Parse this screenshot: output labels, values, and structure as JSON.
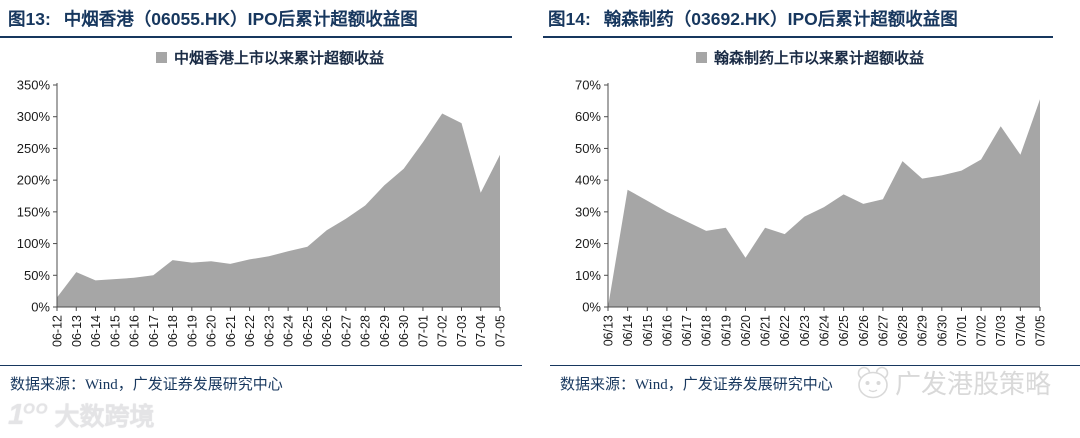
{
  "colors": {
    "title_navy": "#17375e",
    "area_gray": "#a6a6a6",
    "axis_gray": "#4d4d4d",
    "watermark_light": "#d9d9d9"
  },
  "panels": [
    {
      "figure_label": "图13:",
      "title": "中烟香港（06055.HK）IPO后累计超额收益图",
      "legend": "中烟香港上市以来累计超额收益",
      "source": "数据来源：Wind，广发证券发展研究中心"
    },
    {
      "figure_label": "图14:",
      "title": "翰森制药（03692.HK）IPO后累计超额收益图",
      "legend": "翰森制药上市以来累计超额收益",
      "source": "数据来源：Wind，广发证券发展研究中心"
    }
  ],
  "chart_data": [
    {
      "type": "area",
      "title": "中烟香港上市以来累计超额收益",
      "categories": [
        "06-12",
        "06-13",
        "06-14",
        "06-15",
        "06-16",
        "06-17",
        "06-18",
        "06-19",
        "06-20",
        "06-21",
        "06-22",
        "06-23",
        "06-24",
        "06-25",
        "06-26",
        "06-27",
        "06-28",
        "06-29",
        "06-30",
        "07-01",
        "07-02",
        "07-03",
        "07-04",
        "07-05"
      ],
      "values": [
        15,
        55,
        42,
        44,
        46,
        50,
        74,
        70,
        72,
        68,
        75,
        80,
        88,
        95,
        121,
        139,
        160,
        192,
        218,
        260,
        305,
        290,
        180,
        240
      ],
      "unit": "%",
      "ylim": [
        0,
        350
      ],
      "ytick_step": 50,
      "fill_color": "#a6a6a6",
      "legend_position": "top",
      "grid": false,
      "xlabel": "",
      "ylabel": ""
    },
    {
      "type": "area",
      "title": "翰森制药上市以来累计超额收益",
      "categories": [
        "06/13",
        "06/14",
        "06/15",
        "06/16",
        "06/17",
        "06/18",
        "06/19",
        "06/20",
        "06/21",
        "06/22",
        "06/23",
        "06/24",
        "06/25",
        "06/26",
        "06/27",
        "06/28",
        "06/29",
        "06/30",
        "07/01",
        "07/02",
        "07/03",
        "07/04",
        "07/05"
      ],
      "values": [
        0,
        37,
        33.5,
        30,
        27,
        24,
        25,
        15.5,
        25,
        23,
        28.5,
        31.5,
        35.5,
        32.5,
        34,
        46,
        40.5,
        41.5,
        43,
        46.5,
        57,
        48,
        65.5
      ],
      "unit": "%",
      "ylim": [
        0,
        70
      ],
      "ytick_step": 10,
      "fill_color": "#a6a6a6",
      "legend_position": "top",
      "grid": false,
      "xlabel": "",
      "ylabel": ""
    }
  ],
  "watermarks": {
    "bottom_left": "大数跨境",
    "right": "广发港股策略"
  }
}
